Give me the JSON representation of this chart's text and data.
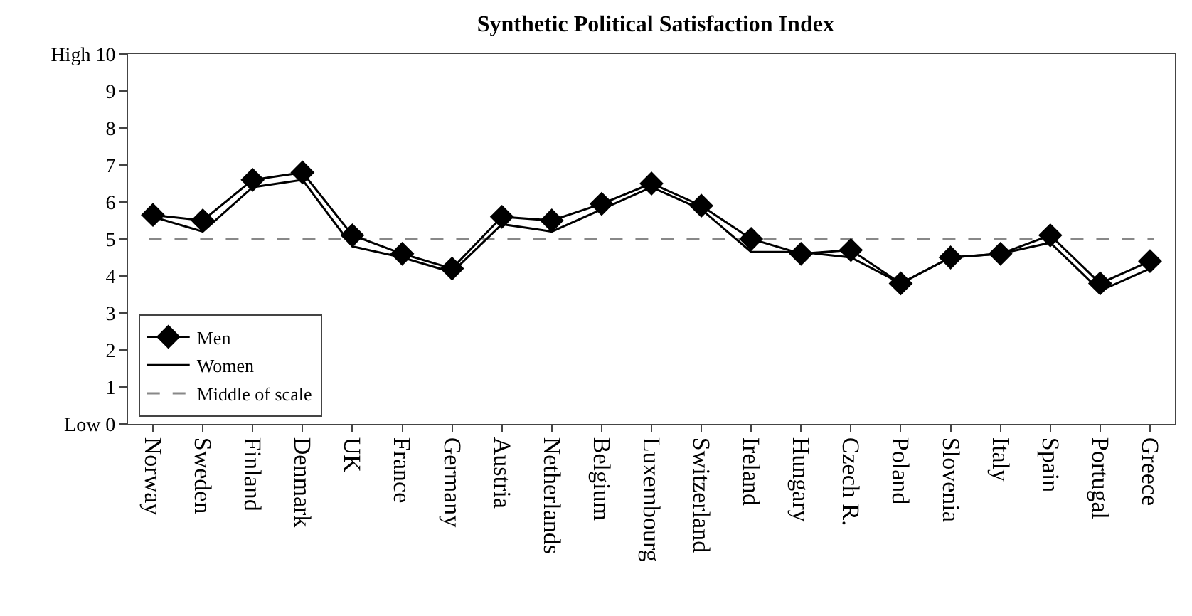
{
  "chart_data": {
    "type": "line",
    "title": "Synthetic Political Satisfaction Index",
    "categories": [
      "Norway",
      "Sweden",
      "Finland",
      "Denmark",
      "UK",
      "France",
      "Germany",
      "Austria",
      "Netherlands",
      "Belgium",
      "Luxembourg",
      "Switzerland",
      "Ireland",
      "Hungary",
      "Czech R.",
      "Poland",
      "Slovenia",
      "Italy",
      "Spain",
      "Portugal",
      "Greece"
    ],
    "series": [
      {
        "name": "Men",
        "color": "#000000",
        "marker": "diamond",
        "values": [
          5.65,
          5.5,
          6.6,
          6.8,
          5.1,
          4.6,
          4.2,
          5.6,
          5.5,
          5.95,
          6.5,
          5.9,
          5.0,
          4.6,
          4.7,
          3.8,
          4.5,
          4.6,
          5.1,
          3.8,
          4.4
        ]
      },
      {
        "name": "Women",
        "color": "#000000",
        "marker": "none",
        "values": [
          5.6,
          5.2,
          6.4,
          6.6,
          4.8,
          4.5,
          4.1,
          5.4,
          5.2,
          5.8,
          6.4,
          5.8,
          4.65,
          4.65,
          4.5,
          3.8,
          4.5,
          4.6,
          4.9,
          3.6,
          4.2
        ]
      }
    ],
    "ylim": [
      0,
      10
    ],
    "yticks": [
      {
        "value": 0,
        "label": "Low 0"
      },
      1,
      2,
      3,
      4,
      5,
      6,
      7,
      8,
      9,
      {
        "value": 10,
        "label": "High 10"
      }
    ],
    "ref_lines": [
      {
        "axis": "y",
        "value": 5,
        "label": "Middle of scale",
        "color": "#888888",
        "line_style": "dashed"
      }
    ],
    "grid": false,
    "legend": "bottom left",
    "line_style": "solid"
  }
}
